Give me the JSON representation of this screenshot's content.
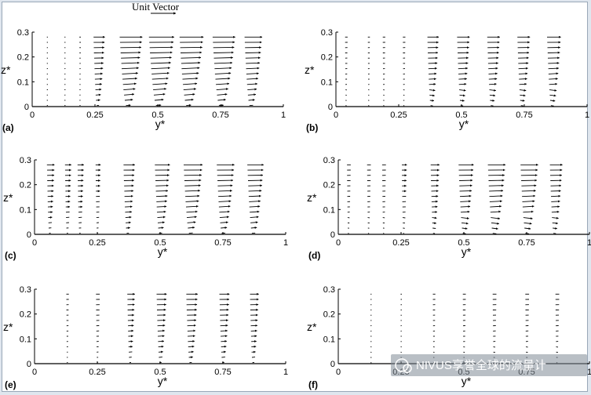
{
  "title": "Unit Vector",
  "axis": {
    "xlabel": "y*",
    "ylabel": "z*",
    "xticks": [
      "0",
      "0.25",
      "0.5",
      "0.75",
      "1"
    ],
    "yticks": [
      "0",
      "0.1",
      "0.2",
      "0.3"
    ]
  },
  "chart_data": [
    {
      "type": "vector-field",
      "label": "(a)",
      "xlabel": "y*",
      "ylabel": "z*",
      "xlim": [
        0,
        1
      ],
      "ylim": [
        0,
        0.3
      ],
      "profiles": [
        0.06,
        0.13,
        0.19,
        0.26,
        0.38,
        0.5,
        0.62,
        0.75,
        0.87
      ],
      "magnitudes": [
        0.03,
        0.03,
        0.06,
        0.45,
        0.9,
        1.0,
        0.95,
        0.9,
        0.7
      ]
    },
    {
      "type": "vector-field",
      "label": "(b)",
      "xlabel": "y*",
      "ylabel": "z*",
      "xlim": [
        0,
        1
      ],
      "ylim": [
        0,
        0.3
      ],
      "profiles": [
        0.04,
        0.13,
        0.19,
        0.27,
        0.38,
        0.5,
        0.62,
        0.74,
        0.86
      ],
      "magnitudes": [
        0.1,
        0.08,
        0.1,
        0.1,
        0.45,
        0.5,
        0.5,
        0.5,
        0.55
      ]
    },
    {
      "type": "vector-field",
      "label": "(c)",
      "xlabel": "y*",
      "ylabel": "z*",
      "xlim": [
        0,
        1
      ],
      "ylim": [
        0,
        0.3
      ],
      "profiles": [
        0.06,
        0.13,
        0.18,
        0.25,
        0.37,
        0.5,
        0.62,
        0.75,
        0.87
      ],
      "magnitudes": [
        0.3,
        0.25,
        0.25,
        0.2,
        0.45,
        0.6,
        0.75,
        0.7,
        0.65
      ]
    },
    {
      "type": "vector-field",
      "label": "(d)",
      "xlabel": "y*",
      "ylabel": "z*",
      "xlim": [
        0,
        1
      ],
      "ylim": [
        0,
        0.3
      ],
      "profiles": [
        0.04,
        0.12,
        0.18,
        0.26,
        0.38,
        0.5,
        0.62,
        0.75,
        0.86
      ],
      "magnitudes": [
        0.15,
        0.15,
        0.15,
        0.2,
        0.35,
        0.6,
        0.7,
        0.7,
        0.5
      ]
    },
    {
      "type": "vector-field",
      "label": "(e)",
      "xlabel": "y*",
      "ylabel": "z*",
      "xlim": [
        0,
        1
      ],
      "ylim": [
        0,
        0.3
      ],
      "profiles": [
        0.13,
        0.25,
        0.38,
        0.5,
        0.62,
        0.75,
        0.87
      ],
      "magnitudes": [
        0.1,
        0.15,
        0.3,
        0.4,
        0.45,
        0.4,
        0.35
      ]
    },
    {
      "type": "vector-field",
      "label": "(f)",
      "xlabel": "y*",
      "ylabel": "z*",
      "xlim": [
        0,
        1
      ],
      "ylim": [
        0,
        0.3
      ],
      "profiles": [
        0.13,
        0.25,
        0.38,
        0.5,
        0.62,
        0.75,
        0.87
      ],
      "magnitudes": [
        0.04,
        0.05,
        0.1,
        0.12,
        0.15,
        0.15,
        0.15
      ]
    }
  ],
  "watermark": "NIVUS享誉全球的流量计"
}
